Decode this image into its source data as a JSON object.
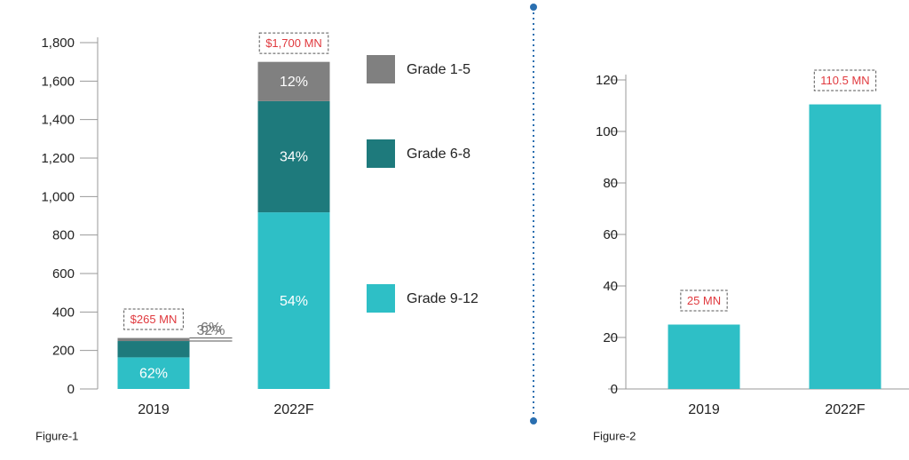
{
  "chart_data": [
    {
      "type": "stacked_bar",
      "caption": "Figure-1",
      "categories": [
        "2019",
        "2022F"
      ],
      "series": [
        {
          "name": "Grade 9-12",
          "color": "#2ebfc6",
          "values": [
            164.3,
            918
          ],
          "value_labels": [
            "62%",
            "54%"
          ]
        },
        {
          "name": "Grade 6-8",
          "color": "#1e7a7c",
          "values": [
            84.8,
            578
          ],
          "value_labels": [
            "32%",
            "34%"
          ]
        },
        {
          "name": "Grade 1-5",
          "color": "#808080",
          "values": [
            15.9,
            204
          ],
          "value_labels": [
            "6%",
            "12%"
          ]
        }
      ],
      "annotations": [
        "$265 MN",
        "$1,700 MN"
      ],
      "ylim": [
        0,
        1800
      ],
      "yticks": [
        0,
        200,
        400,
        600,
        800,
        {
          "value": 1000,
          "label": "1,000"
        },
        {
          "value": 1200,
          "label": "1,200"
        },
        {
          "value": 1400,
          "label": "1,400"
        },
        {
          "value": 1600,
          "label": "1,600"
        },
        {
          "value": 1800,
          "label": "1,800"
        }
      ]
    },
    {
      "type": "bar",
      "caption": "Figure-2",
      "categories": [
        "2019",
        "2022F"
      ],
      "values": [
        25,
        110.5
      ],
      "value_labels": [
        "25  MN",
        "110.5  MN"
      ],
      "color": "#2ebfc6",
      "ylim": [
        0,
        120
      ],
      "yticks": [
        0,
        20,
        40,
        60,
        80,
        100,
        120
      ]
    }
  ]
}
